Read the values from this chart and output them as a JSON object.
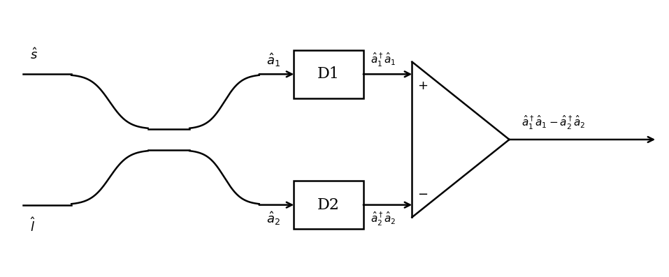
{
  "bg_color": "#ffffff",
  "line_color": "#000000",
  "line_width": 1.8,
  "s_label": "$\\hat{s}$",
  "l_label": "$\\hat{l}$",
  "a1_label": "$\\hat{a}_1$",
  "a2_label": "$\\hat{a}_2$",
  "d1_label": "D1",
  "d2_label": "D2",
  "d1_out_label": "$\\hat{a}_1^\\dagger\\hat{a}_1$",
  "d2_out_label": "$\\hat{a}_2^\\dagger\\hat{a}_2$",
  "plus_label": "$+$",
  "minus_label": "$-$",
  "output_label": "$\\hat{a}_1^\\dagger\\hat{a}_1 - \\hat{a}_2^\\dagger\\hat{a}_2$",
  "fig_width": 9.57,
  "fig_height": 3.97,
  "dpi": 100
}
